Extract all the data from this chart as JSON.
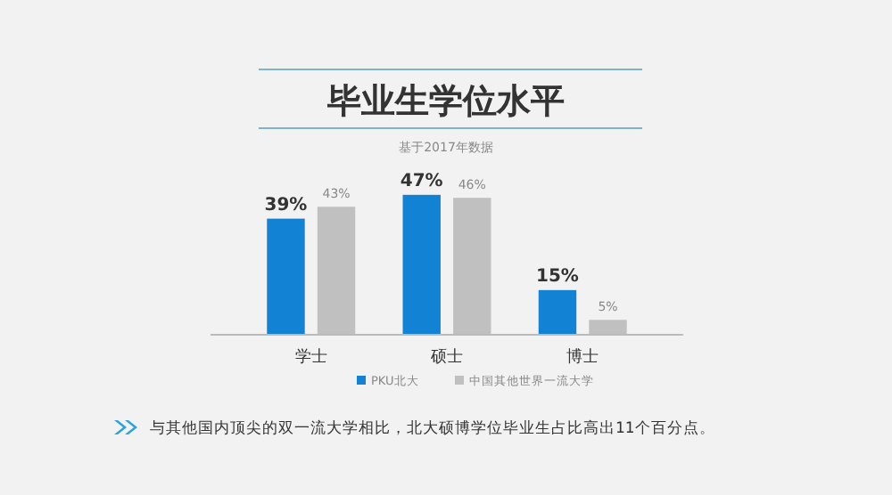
{
  "chart_data": {
    "type": "bar",
    "title": "毕业生学位水平",
    "subtitle": "基于2017年数据",
    "categories": [
      "学士",
      "硕士",
      "博士"
    ],
    "series": [
      {
        "name": "PKU北大",
        "color": "#1283d4",
        "values": [
          39,
          47,
          15
        ],
        "value_labels": [
          "39%",
          "47%",
          "15%"
        ]
      },
      {
        "name": "中国其他世界一流大学",
        "color": "#c0c0c0",
        "values": [
          43,
          46,
          5
        ],
        "value_labels": [
          "43%",
          "46%",
          "5%"
        ]
      }
    ],
    "legend": "bottom",
    "annotations": [
      "与其他国内顶尖的双一流大学相比，北大硕博学位毕业生占比高出11个百分点。"
    ]
  }
}
